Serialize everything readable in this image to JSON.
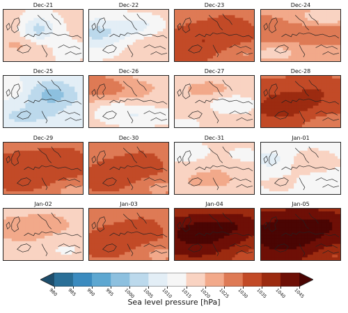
{
  "panels": [
    {
      "date": "Dec-21",
      "level": 1016,
      "pattern": "blue-north"
    },
    {
      "date": "Dec-22",
      "level": 1016,
      "pattern": "blue-west"
    },
    {
      "date": "Dec-23",
      "level": 1028,
      "pattern": "red-central"
    },
    {
      "date": "Dec-24",
      "level": 1024,
      "pattern": "red-band"
    },
    {
      "date": "Dec-25",
      "level": 1010,
      "pattern": "blue-east"
    },
    {
      "date": "Dec-26",
      "level": 1018,
      "pattern": "red-west"
    },
    {
      "date": "Dec-27",
      "level": 1016,
      "pattern": "red-mixed"
    },
    {
      "date": "Dec-28",
      "level": 1028,
      "pattern": "red-wide"
    },
    {
      "date": "Dec-29",
      "level": 1026,
      "pattern": "red-wide"
    },
    {
      "date": "Dec-30",
      "level": 1027,
      "pattern": "red-central"
    },
    {
      "date": "Dec-31",
      "level": 1017,
      "pattern": "red-south"
    },
    {
      "date": "Jan-01",
      "level": 1014,
      "pattern": "mixed-blue"
    },
    {
      "date": "Jan-02",
      "level": 1018,
      "pattern": "red-light"
    },
    {
      "date": "Jan-03",
      "level": 1027,
      "pattern": "red-central"
    },
    {
      "date": "Jan-04",
      "level": 1036,
      "pattern": "dark-core"
    },
    {
      "date": "Jan-05",
      "level": 1038,
      "pattern": "dark-core"
    }
  ],
  "colorbar": {
    "ticks": [
      "980",
      "985",
      "990",
      "995",
      "1000",
      "1005",
      "1010",
      "1015",
      "1020",
      "1025",
      "1030",
      "1035",
      "1040",
      "1045"
    ],
    "colors": [
      "#1d4d6b",
      "#2a6f97",
      "#3b8bbf",
      "#5da7d1",
      "#8dc0df",
      "#bcd9ec",
      "#e3eef6",
      "#f6f6f6",
      "#f9d3c2",
      "#f2a98a",
      "#de7a55",
      "#c24a27",
      "#9c2b10",
      "#6e0f06",
      "#4a0503"
    ],
    "label": "Sea level pressure [hPa]"
  }
}
